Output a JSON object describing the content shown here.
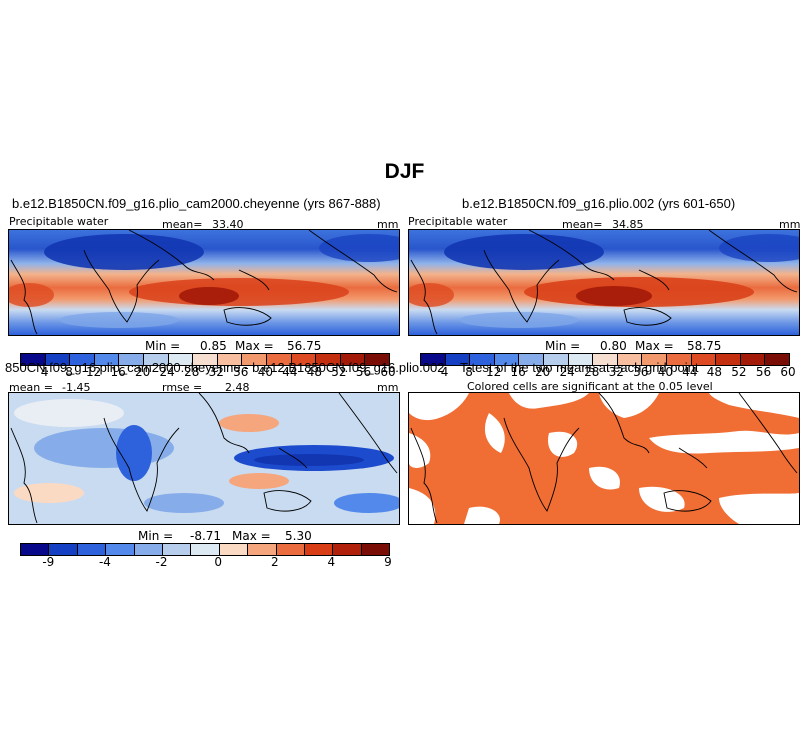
{
  "title": "DJF",
  "chart_data": [
    {
      "type": "heatmap",
      "title": "b.e12.B1850CN.f09_g16.plio_cam2000.cheyenne (yrs 867-888)",
      "variable": "Precipitable water",
      "mean_label": "mean=",
      "mean": "33.40",
      "units": "mm",
      "min_label": "Min =",
      "min": "0.85",
      "max_label": "Max =",
      "max": "56.75",
      "colorbar_levels": [
        "4",
        "8",
        "12",
        "16",
        "20",
        "24",
        "28",
        "32",
        "36",
        "40",
        "44",
        "48",
        "52",
        "56",
        "60"
      ]
    },
    {
      "type": "heatmap",
      "title": "b.e12.B1850CN.f09_g16.plio.002 (yrs 601-650)",
      "variable": "Precipitable water",
      "mean_label": "mean=",
      "mean": "34.85",
      "units": "mm",
      "min_label": "Min =",
      "min": "0.80",
      "max_label": "Max =",
      "max": "58.75",
      "colorbar_levels": [
        "4",
        "8",
        "12",
        "16",
        "20",
        "24",
        "28",
        "32",
        "36",
        "40",
        "44",
        "48",
        "52",
        "56",
        "60"
      ]
    },
    {
      "type": "heatmap",
      "title": "850CN.f09_g16.plio_cam2000.cheyenne - b.e12.B1850CN.f09_g16.plio.002",
      "mean_label": "mean =",
      "mean": "-1.45",
      "rmse_label": "rmse =",
      "rmse": "2.48",
      "units": "mm",
      "min_label": "Min =",
      "min": "-8.71",
      "max_label": "Max =",
      "max": "5.30",
      "colorbar_levels": [
        "-9",
        "",
        "-4",
        "",
        "-2",
        "",
        "0",
        "",
        "2",
        "",
        "4",
        "",
        "9"
      ]
    },
    {
      "type": "heatmap",
      "title": "T-test of the two means at each grid point",
      "subtitle": "Colored cells are significant at the 0.05 level"
    }
  ],
  "colors": {
    "abs_scale": [
      "#08088a",
      "#1540c4",
      "#2e62dc",
      "#5289ea",
      "#86ade9",
      "#b6cdec",
      "#dce8f2",
      "#f6dfd0",
      "#f7bea0",
      "#f29a6e",
      "#ea6c3f",
      "#de4a21",
      "#c42f10",
      "#a31a08",
      "#7a0d05"
    ],
    "diff_scale": [
      "#08088a",
      "#1540c4",
      "#2e62dc",
      "#5289ea",
      "#86ade9",
      "#b6cdec",
      "#dce8f2",
      "#fbdac4",
      "#f5a67c",
      "#ea6c3f",
      "#d83d16",
      "#b1200a",
      "#7a0d05"
    ],
    "ttest_fill": "#f06d33"
  }
}
